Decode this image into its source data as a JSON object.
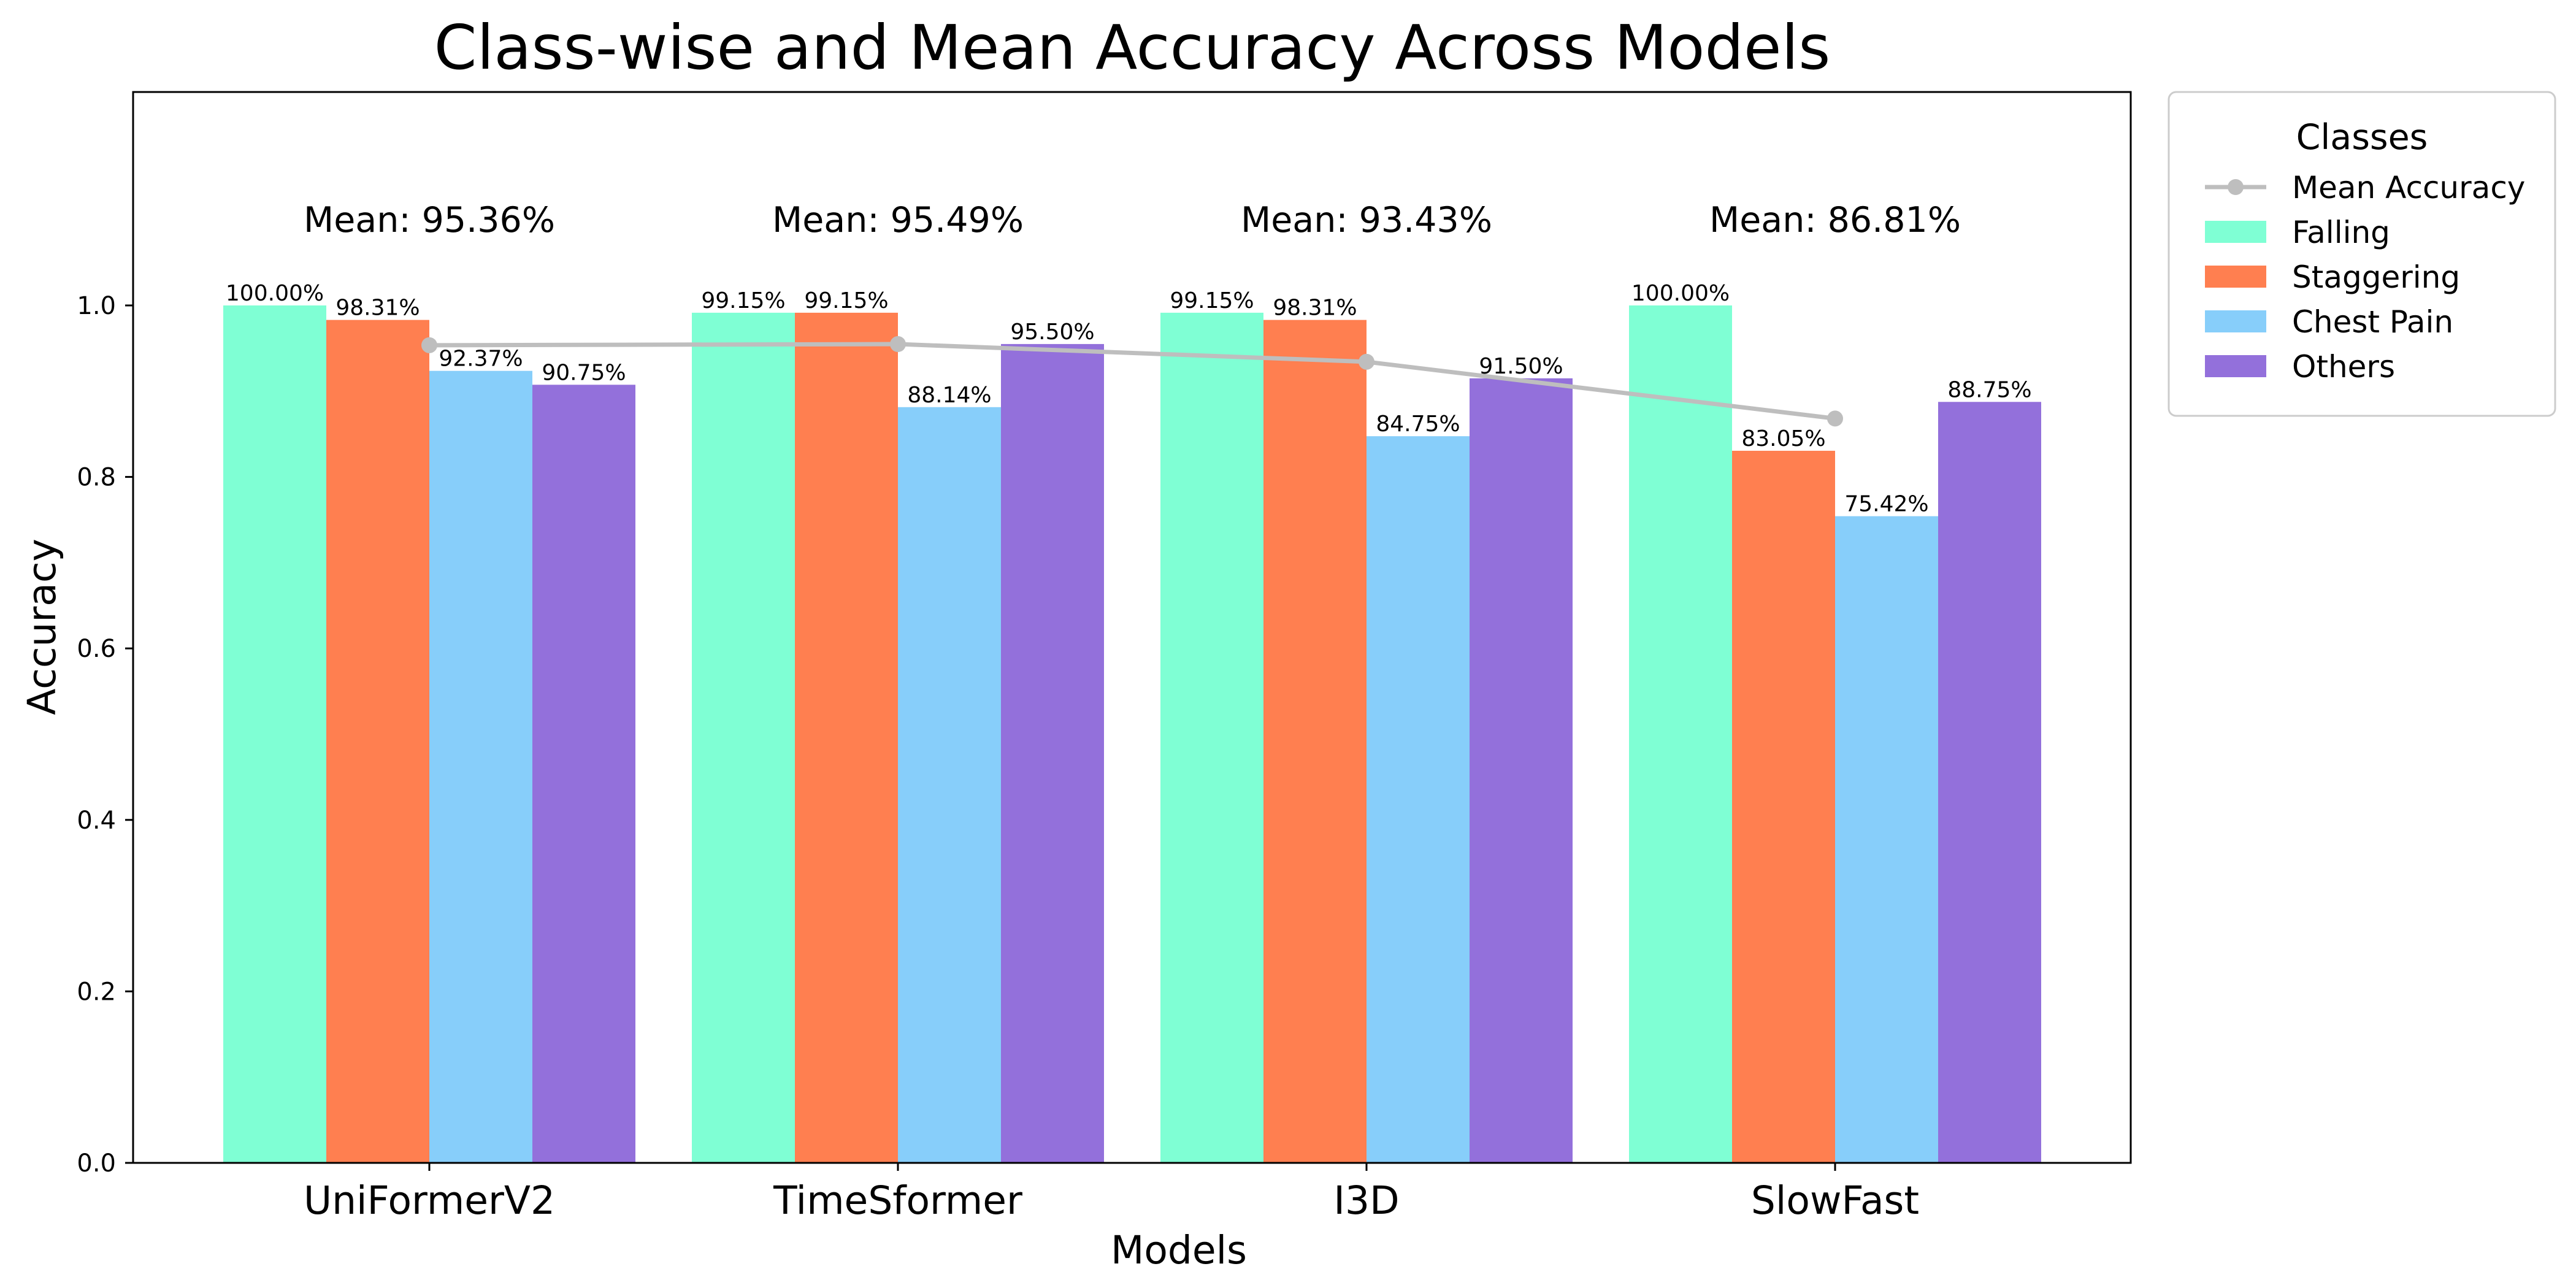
{
  "chart_data": {
    "type": "bar",
    "title": "Class-wise and Mean Accuracy Across Models",
    "xlabel": "Models",
    "ylabel": "Accuracy",
    "ylim": [
      0,
      1.25
    ],
    "yticks": [
      0.0,
      0.2,
      0.4,
      0.6,
      0.8,
      1.0
    ],
    "ytick_labels": [
      "0.0",
      "0.2",
      "0.4",
      "0.6",
      "0.8",
      "1.0"
    ],
    "grid": false,
    "categories": [
      "UniFormerV2",
      "TimeSformer",
      "I3D",
      "SlowFast"
    ],
    "series": [
      {
        "name": "Falling",
        "color": "#7fffd4",
        "values": [
          1.0,
          0.9915,
          0.9915,
          1.0
        ],
        "labels": [
          "100.00%",
          "99.15%",
          "99.15%",
          "100.00%"
        ]
      },
      {
        "name": "Staggering",
        "color": "#ff7f50",
        "values": [
          0.9831,
          0.9915,
          0.9831,
          0.8305
        ],
        "labels": [
          "98.31%",
          "99.15%",
          "98.31%",
          "83.05%"
        ]
      },
      {
        "name": "Chest Pain",
        "color": "#87cefa",
        "values": [
          0.9237,
          0.8814,
          0.8475,
          0.7542
        ],
        "labels": [
          "92.37%",
          "88.14%",
          "84.75%",
          "75.42%"
        ]
      },
      {
        "name": "Others",
        "color": "#9370db",
        "values": [
          0.9075,
          0.955,
          0.915,
          0.8875
        ],
        "labels": [
          "90.75%",
          "95.50%",
          "91.50%",
          "88.75%"
        ]
      }
    ],
    "mean_line": {
      "name": "Mean Accuracy",
      "color": "#bebebe",
      "values": [
        0.9536,
        0.9549,
        0.9343,
        0.8681
      ],
      "annotations": [
        "Mean: 95.36%",
        "Mean: 95.49%",
        "Mean: 93.43%",
        "Mean: 86.81%"
      ],
      "annotation_y": 1.1
    },
    "legend": {
      "title": "Classes",
      "placement": "outside-top-right",
      "entries": [
        "Mean Accuracy",
        "Falling",
        "Staggering",
        "Chest Pain",
        "Others"
      ]
    }
  }
}
